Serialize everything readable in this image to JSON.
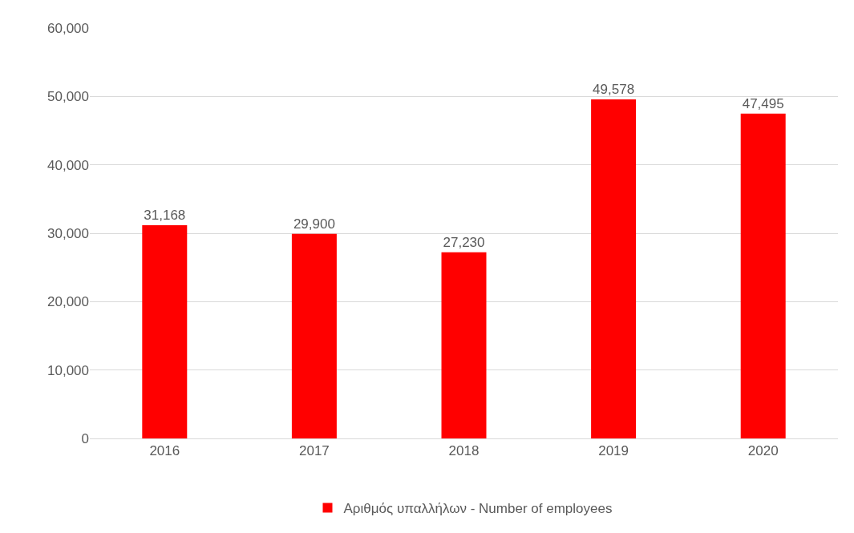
{
  "chart_data": {
    "type": "bar",
    "categories": [
      "2016",
      "2017",
      "2018",
      "2019",
      "2020"
    ],
    "series": [
      {
        "name": "Αριθμός υπαλλήλων - Number of employees",
        "color": "#ff0000",
        "values": [
          31168,
          29900,
          27230,
          49578,
          47495
        ],
        "value_labels": [
          "31,168",
          "29,900",
          "27,230",
          "49,578",
          "47,495"
        ]
      }
    ],
    "ylim": [
      0,
      60000
    ],
    "yticks": [
      {
        "value": 0,
        "label": "0"
      },
      {
        "value": 10000,
        "label": "10,000"
      },
      {
        "value": 20000,
        "label": "20,000"
      },
      {
        "value": 30000,
        "label": "30,000"
      },
      {
        "value": 40000,
        "label": "40,000"
      },
      {
        "value": 50000,
        "label": "50,000"
      },
      {
        "value": 60000,
        "label": "60,000"
      }
    ],
    "grid": "y",
    "legend": "bottom"
  }
}
